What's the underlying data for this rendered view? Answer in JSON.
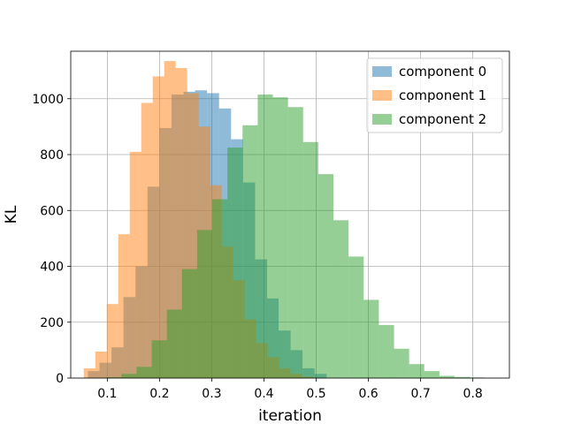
{
  "chart_data": {
    "type": "histogram",
    "xlabel": "iteration",
    "ylabel": "KL",
    "xlim": [
      0.03,
      0.87
    ],
    "ylim": [
      0,
      1170
    ],
    "xticks": [
      0.1,
      0.2,
      0.3,
      0.4,
      0.5,
      0.6,
      0.7,
      0.8
    ],
    "yticks": [
      0,
      200,
      400,
      600,
      800,
      1000
    ],
    "grid": true,
    "legend_position": "top-right",
    "series": [
      {
        "name": "component 0",
        "color": "#1f77b4",
        "alpha": 0.5,
        "bins": [
          {
            "x0": 0.063,
            "x1": 0.085,
            "count": 25
          },
          {
            "x0": 0.085,
            "x1": 0.108,
            "count": 55
          },
          {
            "x0": 0.108,
            "x1": 0.131,
            "count": 110
          },
          {
            "x0": 0.131,
            "x1": 0.154,
            "count": 290
          },
          {
            "x0": 0.154,
            "x1": 0.177,
            "count": 400
          },
          {
            "x0": 0.177,
            "x1": 0.2,
            "count": 685
          },
          {
            "x0": 0.2,
            "x1": 0.223,
            "count": 895
          },
          {
            "x0": 0.223,
            "x1": 0.246,
            "count": 1015
          },
          {
            "x0": 0.246,
            "x1": 0.268,
            "count": 1025
          },
          {
            "x0": 0.268,
            "x1": 0.291,
            "count": 1030
          },
          {
            "x0": 0.291,
            "x1": 0.314,
            "count": 1020
          },
          {
            "x0": 0.314,
            "x1": 0.337,
            "count": 965
          },
          {
            "x0": 0.337,
            "x1": 0.36,
            "count": 855
          },
          {
            "x0": 0.36,
            "x1": 0.383,
            "count": 700
          },
          {
            "x0": 0.383,
            "x1": 0.406,
            "count": 425
          },
          {
            "x0": 0.406,
            "x1": 0.428,
            "count": 285
          },
          {
            "x0": 0.428,
            "x1": 0.451,
            "count": 170
          },
          {
            "x0": 0.451,
            "x1": 0.474,
            "count": 100
          },
          {
            "x0": 0.474,
            "x1": 0.497,
            "count": 35
          },
          {
            "x0": 0.497,
            "x1": 0.52,
            "count": 15
          }
        ]
      },
      {
        "name": "component 1",
        "color": "#ff7f0e",
        "alpha": 0.5,
        "bins": [
          {
            "x0": 0.055,
            "x1": 0.077,
            "count": 35
          },
          {
            "x0": 0.077,
            "x1": 0.099,
            "count": 95
          },
          {
            "x0": 0.099,
            "x1": 0.121,
            "count": 265
          },
          {
            "x0": 0.121,
            "x1": 0.143,
            "count": 515
          },
          {
            "x0": 0.143,
            "x1": 0.165,
            "count": 810
          },
          {
            "x0": 0.165,
            "x1": 0.187,
            "count": 985
          },
          {
            "x0": 0.187,
            "x1": 0.209,
            "count": 1080
          },
          {
            "x0": 0.209,
            "x1": 0.231,
            "count": 1135
          },
          {
            "x0": 0.231,
            "x1": 0.253,
            "count": 1110
          },
          {
            "x0": 0.253,
            "x1": 0.275,
            "count": 1020
          },
          {
            "x0": 0.275,
            "x1": 0.297,
            "count": 900
          },
          {
            "x0": 0.297,
            "x1": 0.319,
            "count": 690
          },
          {
            "x0": 0.319,
            "x1": 0.341,
            "count": 470
          },
          {
            "x0": 0.341,
            "x1": 0.363,
            "count": 350
          },
          {
            "x0": 0.363,
            "x1": 0.385,
            "count": 210
          },
          {
            "x0": 0.385,
            "x1": 0.407,
            "count": 125
          },
          {
            "x0": 0.407,
            "x1": 0.429,
            "count": 75
          },
          {
            "x0": 0.429,
            "x1": 0.451,
            "count": 35
          },
          {
            "x0": 0.451,
            "x1": 0.473,
            "count": 15
          },
          {
            "x0": 0.473,
            "x1": 0.495,
            "count": 5
          }
        ]
      },
      {
        "name": "component 2",
        "color": "#2ca02c",
        "alpha": 0.5,
        "bins": [
          {
            "x0": 0.098,
            "x1": 0.127,
            "count": 3
          },
          {
            "x0": 0.127,
            "x1": 0.156,
            "count": 15
          },
          {
            "x0": 0.156,
            "x1": 0.185,
            "count": 40
          },
          {
            "x0": 0.185,
            "x1": 0.214,
            "count": 135
          },
          {
            "x0": 0.214,
            "x1": 0.243,
            "count": 245
          },
          {
            "x0": 0.243,
            "x1": 0.272,
            "count": 390
          },
          {
            "x0": 0.272,
            "x1": 0.301,
            "count": 530
          },
          {
            "x0": 0.301,
            "x1": 0.33,
            "count": 640
          },
          {
            "x0": 0.33,
            "x1": 0.359,
            "count": 825
          },
          {
            "x0": 0.359,
            "x1": 0.388,
            "count": 905
          },
          {
            "x0": 0.388,
            "x1": 0.417,
            "count": 1015
          },
          {
            "x0": 0.417,
            "x1": 0.446,
            "count": 1005
          },
          {
            "x0": 0.446,
            "x1": 0.475,
            "count": 970
          },
          {
            "x0": 0.475,
            "x1": 0.504,
            "count": 845
          },
          {
            "x0": 0.504,
            "x1": 0.533,
            "count": 730
          },
          {
            "x0": 0.533,
            "x1": 0.562,
            "count": 565
          },
          {
            "x0": 0.562,
            "x1": 0.591,
            "count": 435
          },
          {
            "x0": 0.591,
            "x1": 0.62,
            "count": 280
          },
          {
            "x0": 0.62,
            "x1": 0.649,
            "count": 190
          },
          {
            "x0": 0.649,
            "x1": 0.678,
            "count": 105
          },
          {
            "x0": 0.678,
            "x1": 0.707,
            "count": 50
          },
          {
            "x0": 0.707,
            "x1": 0.736,
            "count": 25
          },
          {
            "x0": 0.736,
            "x1": 0.765,
            "count": 8
          },
          {
            "x0": 0.765,
            "x1": 0.794,
            "count": 4
          },
          {
            "x0": 0.794,
            "x1": 0.823,
            "count": 2
          }
        ]
      }
    ]
  }
}
